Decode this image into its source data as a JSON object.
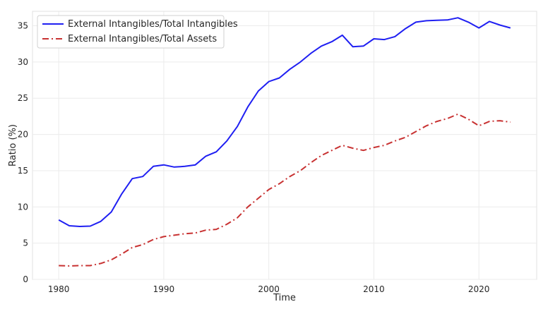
{
  "chart_data": {
    "type": "line",
    "xlabel": "Time",
    "ylabel": "Ratio (%)",
    "xlim": [
      1977.5,
      2025.5
    ],
    "ylim": [
      0,
      37
    ],
    "xticks": [
      1980,
      1990,
      2000,
      2010,
      2020
    ],
    "yticks": [
      0,
      5,
      10,
      15,
      20,
      25,
      30,
      35
    ],
    "grid": true,
    "legend": "top-left",
    "x": [
      1980,
      1981,
      1982,
      1983,
      1984,
      1985,
      1986,
      1987,
      1988,
      1989,
      1990,
      1991,
      1992,
      1993,
      1994,
      1995,
      1996,
      1997,
      1998,
      1999,
      2000,
      2001,
      2002,
      2003,
      2004,
      2005,
      2006,
      2007,
      2008,
      2009,
      2010,
      2011,
      2012,
      2013,
      2014,
      2015,
      2016,
      2017,
      2018,
      2019,
      2020,
      2021,
      2022,
      2023
    ],
    "series": [
      {
        "name": "External Intangibles/Total Intangibles",
        "color": "#1f1ff2",
        "style": "solid",
        "values": [
          8.2,
          7.4,
          7.3,
          7.35,
          8.0,
          9.3,
          11.8,
          13.9,
          14.2,
          15.6,
          15.8,
          15.5,
          15.6,
          15.8,
          17.0,
          17.6,
          19.1,
          21.1,
          23.8,
          26.0,
          27.3,
          27.8,
          29.0,
          30.0,
          31.2,
          32.2,
          32.8,
          33.7,
          32.1,
          32.2,
          33.2,
          33.1,
          33.5,
          34.6,
          35.5,
          35.7,
          35.75,
          35.8,
          36.1,
          35.5,
          34.7,
          35.6,
          35.1,
          34.7
        ]
      },
      {
        "name": "External Intangibles/Total Assets",
        "color": "#c83232",
        "style": "dashdot",
        "values": [
          1.9,
          1.85,
          1.9,
          1.9,
          2.2,
          2.7,
          3.5,
          4.4,
          4.8,
          5.5,
          5.9,
          6.1,
          6.3,
          6.4,
          6.8,
          6.9,
          7.6,
          8.5,
          10.0,
          11.2,
          12.4,
          13.2,
          14.2,
          15.0,
          16.1,
          17.1,
          17.8,
          18.5,
          18.1,
          17.8,
          18.2,
          18.5,
          19.1,
          19.6,
          20.4,
          21.2,
          21.8,
          22.2,
          22.8,
          22.1,
          21.2,
          21.8,
          21.9,
          21.7
        ]
      }
    ]
  }
}
